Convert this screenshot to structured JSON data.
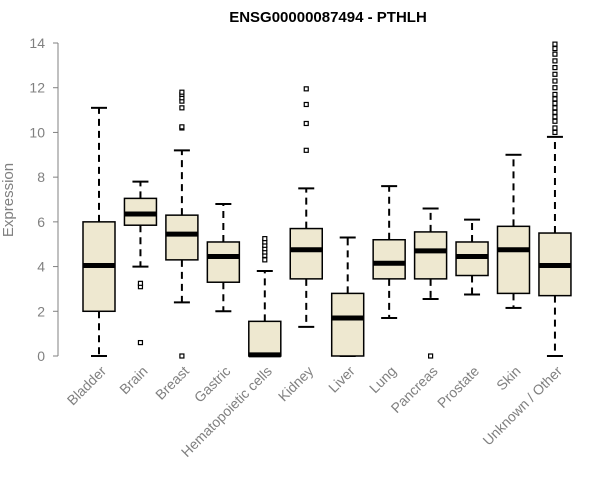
{
  "chart_data": {
    "type": "boxplot",
    "title": "ENSG00000087494 - PTHLH",
    "xlabel": "",
    "ylabel": "Expression",
    "ylim": [
      0,
      14
    ],
    "yticks": [
      0,
      2,
      4,
      6,
      8,
      10,
      12,
      14
    ],
    "categories": [
      "Bladder",
      "Brain",
      "Breast",
      "Gastric",
      "Hematopoietic cells",
      "Kidney",
      "Liver",
      "Lung",
      "Pancreas",
      "Prostate",
      "Skin",
      "Unknown / Other"
    ],
    "boxes": [
      {
        "whisker_low": 0.0,
        "q1": 2.0,
        "median": 4.05,
        "q3": 6.0,
        "whisker_high": 11.1,
        "outliers": []
      },
      {
        "whisker_low": 4.0,
        "q1": 5.85,
        "median": 6.35,
        "q3": 7.05,
        "whisker_high": 7.8,
        "outliers": [
          3.1,
          3.25,
          0.6
        ]
      },
      {
        "whisker_low": 2.4,
        "q1": 4.3,
        "median": 5.45,
        "q3": 6.3,
        "whisker_high": 9.2,
        "outliers": [
          10.2,
          10.25,
          11.1,
          11.4,
          11.55,
          11.7,
          11.8,
          0.0
        ]
      },
      {
        "whisker_low": 2.0,
        "q1": 3.3,
        "median": 4.45,
        "q3": 5.1,
        "whisker_high": 6.8,
        "outliers": []
      },
      {
        "whisker_low": 0.0,
        "q1": 0.0,
        "median": 0.05,
        "q3": 1.55,
        "whisker_high": 3.8,
        "outliers": [
          4.3,
          4.5,
          4.65,
          4.8,
          4.95,
          5.1,
          5.25
        ]
      },
      {
        "whisker_low": 1.3,
        "q1": 3.45,
        "median": 4.75,
        "q3": 5.7,
        "whisker_high": 7.5,
        "outliers": [
          9.2,
          10.4,
          11.25,
          11.95
        ]
      },
      {
        "whisker_low": 0.0,
        "q1": 0.0,
        "median": 1.7,
        "q3": 2.8,
        "whisker_high": 5.3,
        "outliers": []
      },
      {
        "whisker_low": 1.7,
        "q1": 3.45,
        "median": 4.15,
        "q3": 5.2,
        "whisker_high": 7.6,
        "outliers": []
      },
      {
        "whisker_low": 2.55,
        "q1": 3.45,
        "median": 4.7,
        "q3": 5.55,
        "whisker_high": 6.6,
        "outliers": [
          0.0
        ]
      },
      {
        "whisker_low": 2.75,
        "q1": 3.6,
        "median": 4.45,
        "q3": 5.1,
        "whisker_high": 6.1,
        "outliers": []
      },
      {
        "whisker_low": 2.15,
        "q1": 2.8,
        "median": 4.75,
        "q3": 5.8,
        "whisker_high": 9.0,
        "outliers": []
      },
      {
        "whisker_low": 0.0,
        "q1": 2.7,
        "median": 4.05,
        "q3": 5.5,
        "whisker_high": 9.8,
        "outliers": [
          10.0,
          10.2,
          10.5,
          10.7,
          10.9,
          11.1,
          11.3,
          11.5,
          11.7,
          12.0,
          12.3,
          12.6,
          12.9,
          13.2,
          13.5,
          13.75,
          13.95
        ]
      }
    ]
  },
  "colors": {
    "box_fill": "#EEE8D0",
    "stroke": "#000000",
    "axis": "#808080",
    "title": "#000000"
  }
}
